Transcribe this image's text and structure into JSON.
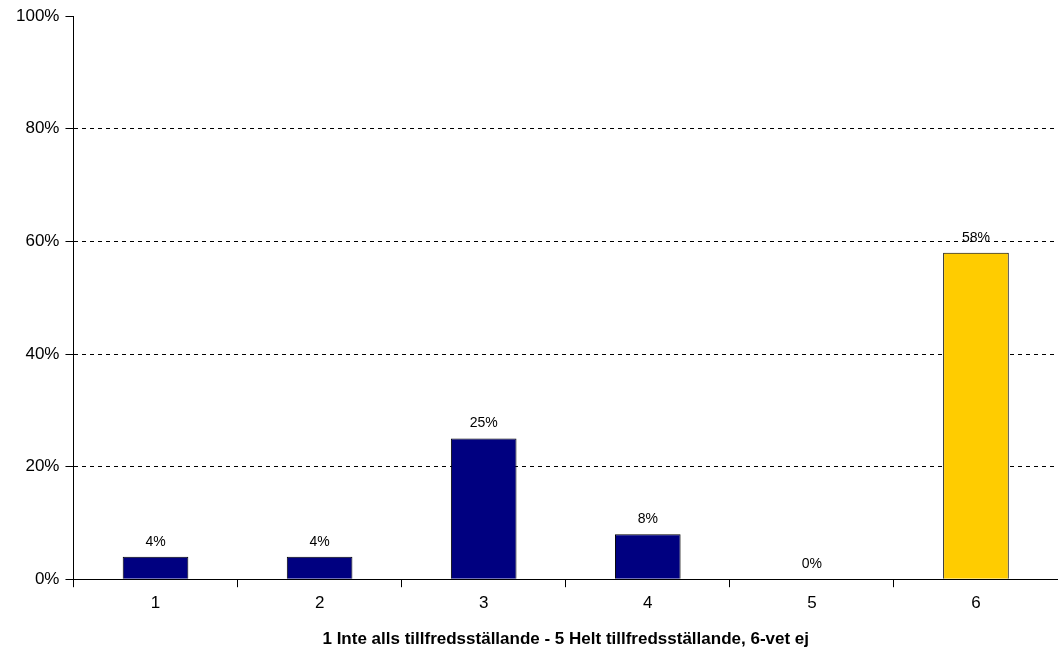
{
  "chart_data": {
    "type": "bar",
    "xlabel": "1 Inte alls tillfredsställande - 5 Helt tillfredsställande, 6-vet ej",
    "categories": [
      "1",
      "2",
      "3",
      "4",
      "5",
      "6"
    ],
    "values": [
      4,
      4,
      25,
      8,
      0,
      58
    ],
    "colors": [
      "#000080",
      "#000080",
      "#000080",
      "#000080",
      "#000080",
      "#ffcc00"
    ],
    "value_labels": [
      "4%",
      "4%",
      "25%",
      "8%",
      "0%",
      "58%"
    ],
    "ylim": [
      0,
      100
    ],
    "yticks": [
      {
        "value": 0,
        "label": "0%"
      },
      {
        "value": 20,
        "label": "20%"
      },
      {
        "value": 40,
        "label": "40%"
      },
      {
        "value": 60,
        "label": "60%"
      },
      {
        "value": 80,
        "label": "80%"
      },
      {
        "value": 100,
        "label": "100%"
      }
    ],
    "grid": "y",
    "line_style": "dashed",
    "legend": false
  }
}
